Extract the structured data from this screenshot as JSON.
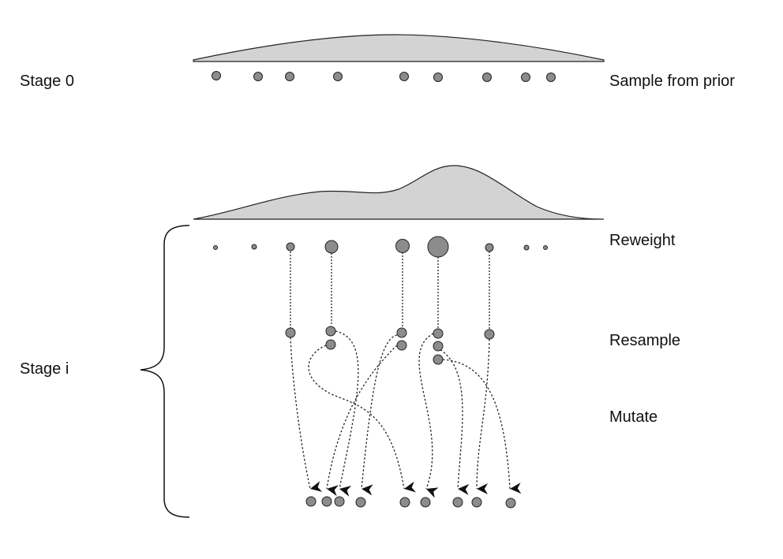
{
  "labels": {
    "stage_0": "Stage 0",
    "stage_i": "Stage i",
    "sample_from_prior": "Sample from prior",
    "reweight": "Reweight",
    "resample": "Resample",
    "mutate": "Mutate"
  },
  "colors": {
    "density_fill": "#d3d3d3",
    "particle_fill": "#8c8c8c",
    "stroke": "#222222"
  },
  "particles": {
    "prior_count": 9,
    "reweighted_count": 9,
    "resampled_count": 9,
    "mutated_count": 9
  }
}
